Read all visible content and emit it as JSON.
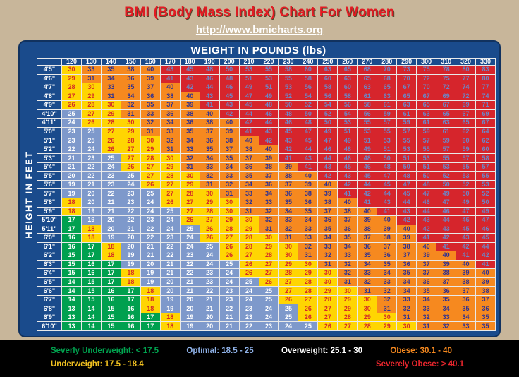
{
  "header": {
    "title": "BMI (Body Mass Index) Chart For Women",
    "url": "http://www.bmicharts.org"
  },
  "chart_data": {
    "type": "heatmap",
    "title": "BMI (Body Mass Index) Chart For Women",
    "x_label": "WEIGHT IN POUNDS (lbs)",
    "y_label": "HEIGHT IN FEET",
    "columns": [
      120,
      130,
      140,
      150,
      160,
      170,
      180,
      190,
      200,
      210,
      220,
      230,
      240,
      250,
      260,
      270,
      280,
      290,
      300,
      310,
      320,
      330
    ],
    "rows": [
      "4'5\"",
      "4'6\"",
      "4'7\"",
      "4'8\"",
      "4'9\"",
      "4'10\"",
      "4'11\"",
      "5'0\"",
      "5'1\"",
      "5'2\"",
      "5'3\"",
      "5'4\"",
      "5'5\"",
      "5'6\"",
      "5'7\"",
      "5'8\"",
      "5'9\"",
      "5'10\"",
      "5'11\"",
      "6'0\"",
      "6'1\"",
      "6'2\"",
      "6'3\"",
      "6'4\"",
      "6'5\"",
      "6'6\"",
      "6'7\"",
      "6'8\"",
      "6'9\"",
      "6'10\""
    ],
    "values": [
      [
        30,
        33,
        35,
        38,
        40,
        43,
        45,
        48,
        50,
        53,
        55,
        58,
        60,
        63,
        65,
        68,
        70,
        73,
        75,
        78,
        80,
        83
      ],
      [
        29,
        31,
        34,
        36,
        39,
        41,
        43,
        46,
        48,
        51,
        53,
        55,
        58,
        60,
        63,
        65,
        68,
        70,
        72,
        75,
        77,
        80
      ],
      [
        28,
        30,
        33,
        35,
        37,
        40,
        42,
        44,
        46,
        49,
        51,
        53,
        56,
        58,
        60,
        63,
        65,
        67,
        70,
        72,
        74,
        77
      ],
      [
        27,
        29,
        31,
        34,
        36,
        38,
        40,
        43,
        45,
        47,
        49,
        52,
        54,
        56,
        58,
        61,
        63,
        65,
        67,
        69,
        72,
        74
      ],
      [
        26,
        28,
        30,
        32,
        35,
        37,
        39,
        41,
        43,
        45,
        48,
        50,
        52,
        54,
        56,
        58,
        61,
        63,
        65,
        67,
        69,
        71
      ],
      [
        25,
        27,
        29,
        31,
        33,
        36,
        38,
        40,
        42,
        44,
        46,
        48,
        50,
        52,
        54,
        56,
        59,
        61,
        63,
        65,
        67,
        69
      ],
      [
        24,
        26,
        28,
        30,
        32,
        34,
        36,
        38,
        40,
        42,
        44,
        46,
        48,
        50,
        53,
        55,
        57,
        59,
        61,
        63,
        65,
        67
      ],
      [
        23,
        25,
        27,
        29,
        31,
        33,
        35,
        37,
        39,
        41,
        43,
        45,
        47,
        49,
        51,
        53,
        55,
        57,
        59,
        61,
        62,
        64
      ],
      [
        23,
        25,
        26,
        28,
        30,
        32,
        34,
        36,
        38,
        40,
        42,
        43,
        45,
        47,
        49,
        51,
        53,
        55,
        57,
        59,
        60,
        62
      ],
      [
        22,
        24,
        26,
        27,
        29,
        31,
        33,
        35,
        37,
        38,
        40,
        42,
        44,
        46,
        48,
        49,
        51,
        53,
        55,
        57,
        59,
        60
      ],
      [
        21,
        23,
        25,
        27,
        28,
        30,
        32,
        34,
        35,
        37,
        39,
        41,
        43,
        44,
        46,
        48,
        50,
        51,
        53,
        55,
        57,
        58
      ],
      [
        21,
        22,
        24,
        26,
        27,
        29,
        31,
        33,
        34,
        36,
        38,
        39,
        41,
        43,
        45,
        46,
        48,
        50,
        51,
        53,
        55,
        57
      ],
      [
        20,
        22,
        23,
        25,
        27,
        28,
        30,
        32,
        33,
        35,
        37,
        38,
        40,
        42,
        43,
        45,
        47,
        48,
        50,
        52,
        53,
        55
      ],
      [
        19,
        21,
        23,
        24,
        26,
        27,
        29,
        31,
        32,
        34,
        36,
        37,
        39,
        40,
        42,
        44,
        45,
        47,
        48,
        50,
        52,
        53
      ],
      [
        19,
        20,
        22,
        23,
        25,
        27,
        28,
        30,
        31,
        33,
        34,
        36,
        38,
        39,
        41,
        42,
        44,
        45,
        47,
        49,
        50,
        52
      ],
      [
        18,
        20,
        21,
        23,
        24,
        26,
        27,
        29,
        30,
        32,
        33,
        35,
        36,
        38,
        40,
        41,
        43,
        44,
        46,
        47,
        49,
        50
      ],
      [
        18,
        19,
        21,
        22,
        24,
        25,
        27,
        28,
        30,
        31,
        32,
        34,
        35,
        37,
        38,
        40,
        41,
        43,
        44,
        46,
        47,
        49
      ],
      [
        17,
        19,
        20,
        22,
        23,
        24,
        26,
        27,
        29,
        30,
        32,
        33,
        34,
        36,
        37,
        39,
        40,
        42,
        43,
        44,
        46,
        47
      ],
      [
        17,
        18,
        20,
        21,
        22,
        24,
        25,
        26,
        28,
        29,
        31,
        32,
        33,
        35,
        36,
        38,
        39,
        40,
        42,
        43,
        45,
        46
      ],
      [
        16,
        18,
        19,
        20,
        22,
        23,
        24,
        26,
        27,
        28,
        30,
        31,
        33,
        34,
        35,
        37,
        38,
        39,
        41,
        42,
        43,
        45
      ],
      [
        16,
        17,
        18,
        20,
        21,
        22,
        24,
        25,
        26,
        28,
        29,
        30,
        32,
        33,
        34,
        36,
        37,
        38,
        40,
        41,
        42,
        44
      ],
      [
        15,
        17,
        18,
        19,
        21,
        22,
        23,
        24,
        26,
        27,
        28,
        30,
        31,
        32,
        33,
        35,
        36,
        37,
        39,
        40,
        41,
        42
      ],
      [
        15,
        16,
        17,
        19,
        20,
        21,
        22,
        24,
        25,
        26,
        27,
        29,
        30,
        31,
        32,
        34,
        35,
        36,
        37,
        39,
        40,
        41
      ],
      [
        15,
        16,
        17,
        18,
        19,
        21,
        22,
        23,
        24,
        26,
        27,
        28,
        29,
        30,
        32,
        33,
        34,
        35,
        37,
        38,
        39,
        40
      ],
      [
        14,
        15,
        17,
        18,
        19,
        20,
        21,
        23,
        24,
        25,
        26,
        27,
        28,
        30,
        31,
        32,
        33,
        34,
        36,
        37,
        38,
        39
      ],
      [
        14,
        15,
        16,
        17,
        18,
        20,
        21,
        22,
        23,
        24,
        25,
        27,
        28,
        29,
        30,
        31,
        32,
        34,
        35,
        36,
        37,
        38
      ],
      [
        14,
        15,
        16,
        17,
        18,
        19,
        20,
        21,
        23,
        24,
        25,
        26,
        27,
        28,
        29,
        30,
        32,
        33,
        34,
        35,
        36,
        37
      ],
      [
        13,
        14,
        15,
        16,
        18,
        19,
        20,
        21,
        22,
        23,
        24,
        25,
        26,
        27,
        29,
        30,
        31,
        32,
        33,
        34,
        35,
        36
      ],
      [
        13,
        14,
        15,
        16,
        17,
        18,
        19,
        20,
        21,
        23,
        24,
        25,
        26,
        27,
        28,
        29,
        30,
        31,
        32,
        33,
        34,
        35
      ],
      [
        13,
        14,
        15,
        16,
        17,
        18,
        19,
        20,
        21,
        22,
        23,
        24,
        25,
        26,
        27,
        28,
        29,
        30,
        31,
        32,
        33,
        35
      ]
    ],
    "categories": {
      "severely_underweight": {
        "bg": "#00A04F",
        "fg": "#FFFFFF"
      },
      "underweight": {
        "bg": "#FFD502",
        "fg": "#D42B26"
      },
      "optimal": {
        "bg": "#7E99CB",
        "fg": "#FFFFFF"
      },
      "overweight": {
        "bg": "#FFD502",
        "fg": "#D42B26"
      },
      "obese": {
        "bg": "#F6891F",
        "fg": "#2E3192"
      },
      "severely_obese": {
        "bg": "#D6252C",
        "fg": "#6C86C7"
      }
    }
  },
  "legend": {
    "row1": [
      {
        "label": "Severly Underweight: < 17.5",
        "color": "#00A550"
      },
      {
        "label": "Optimal: 18.5 - 25",
        "color": "#8FB2E8"
      },
      {
        "label": "Overweight: 25.1 - 30",
        "color": "#FFFFFF"
      },
      {
        "label": "Obese: 30.1 - 40",
        "color": "#F6891F"
      }
    ],
    "row2": [
      {
        "label": "Underweight: 17.5 - 18.4",
        "color": "#F0C020"
      },
      {
        "label": "Severely Obese: > 40.1",
        "color": "#E8262D"
      }
    ]
  }
}
